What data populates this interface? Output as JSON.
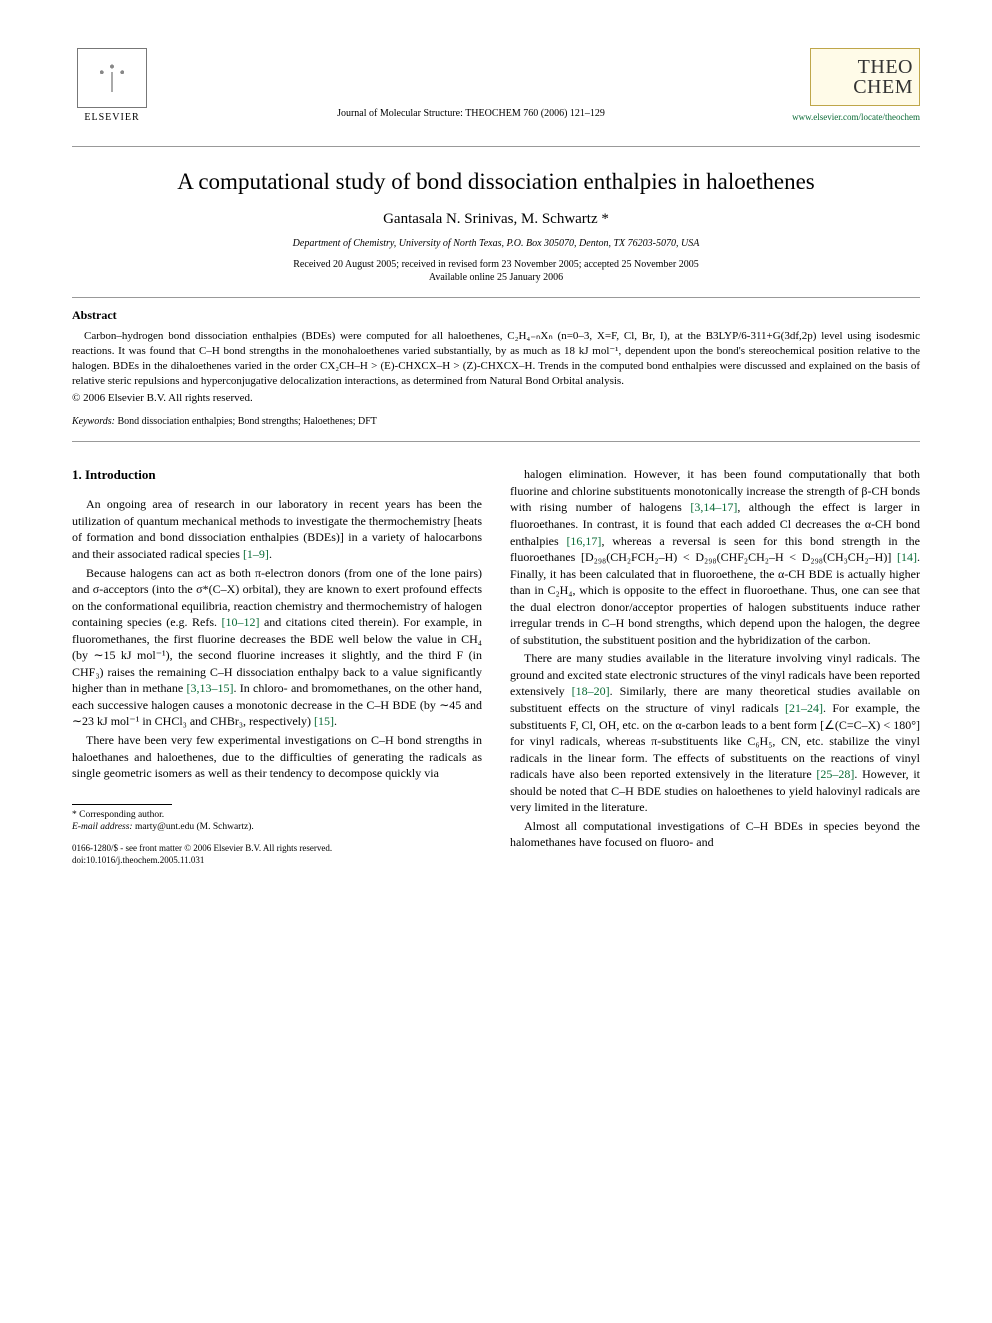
{
  "header": {
    "publisher_logo_text": "ELSEVIER",
    "journal_citation": "Journal of Molecular Structure: THEOCHEM 760 (2006) 121–129",
    "journal_brand_line1": "THEO",
    "journal_brand_line2": "CHEM",
    "journal_url": "www.elsevier.com/locate/theochem"
  },
  "article": {
    "title": "A computational study of bond dissociation enthalpies in haloethenes",
    "authors": "Gantasala N. Srinivas, M. Schwartz *",
    "affiliation": "Department of Chemistry, University of North Texas, P.O. Box 305070, Denton, TX 76203-5070, USA",
    "received": "Received 20 August 2005; received in revised form 23 November 2005; accepted 25 November 2005",
    "available": "Available online 25 January 2006"
  },
  "abstract": {
    "heading": "Abstract",
    "body": "Carbon–hydrogen bond dissociation enthalpies (BDEs) were computed for all haloethenes, C₂H₄₋ₙXₙ (n=0–3, X=F, Cl, Br, I), at the B3LYP/6-311+G(3df,2p) level using isodesmic reactions. It was found that C–H bond strengths in the monohaloethenes varied substantially, by as much as 18 kJ mol⁻¹, dependent upon the bond's stereochemical position relative to the halogen. BDEs in the dihaloethenes varied in the order CX₂CH–H > (E)-CHXCX–H > (Z)-CHXCX–H. Trends in the computed bond enthalpies were discussed and explained on the basis of relative steric repulsions and hyperconjugative delocalization interactions, as determined from Natural Bond Orbital analysis.",
    "copyright": "© 2006 Elsevier B.V. All rights reserved.",
    "keywords_label": "Keywords:",
    "keywords": " Bond dissociation enthalpies; Bond strengths; Haloethenes; DFT"
  },
  "body": {
    "section_heading": "1. Introduction",
    "left_paragraphs": [
      "An ongoing area of research in our laboratory in recent years has been the utilization of quantum mechanical methods to investigate the thermochemistry [heats of formation and bond dissociation enthalpies (BDEs)] in a variety of halocarbons and their associated radical species [1–9].",
      "Because halogens can act as both π-electron donors (from one of the lone pairs) and σ-acceptors (into the σ*(C–X) orbital), they are known to exert profound effects on the conformational equilibria, reaction chemistry and thermochemistry of halogen containing species (e.g. Refs. [10–12] and citations cited therein). For example, in fluoromethanes, the first fluorine decreases the BDE well below the value in CH₄ (by ∼15 kJ mol⁻¹), the second fluorine increases it slightly, and the third F (in CHF₃) raises the remaining C–H dissociation enthalpy back to a value significantly higher than in methane [3,13–15]. In chloro- and bromomethanes, on the other hand, each successive halogen causes a monotonic decrease in the C–H BDE (by ∼45 and ∼23 kJ mol⁻¹ in CHCl₃ and CHBr₃, respectively) [15].",
      "There have been very few experimental investigations on C–H bond strengths in haloethanes and haloethenes, due to the difficulties of generating the radicals as single geometric isomers as well as their tendency to decompose quickly via"
    ],
    "right_paragraphs": [
      "halogen elimination. However, it has been found computationally that both fluorine and chlorine substituents monotonically increase the strength of β-CH bonds with rising number of halogens [3,14–17], although the effect is larger in fluoroethanes. In contrast, it is found that each added Cl decreases the α-CH bond enthalpies [16,17], whereas a reversal is seen for this bond strength in the fluoroethanes [D₂₉₈(CH₂FCH₂–H) < D₂₉₈(CHF₂CH₂–H < D₂₉₈(CH₃CH₂–H)] [14]. Finally, it has been calculated that in fluoroethene, the α-CH BDE is actually higher than in C₂H₄, which is opposite to the effect in fluoroethane. Thus, one can see that the dual electron donor/acceptor properties of halogen substituents induce rather irregular trends in C–H bond strengths, which depend upon the halogen, the degree of substitution, the substituent position and the hybridization of the carbon.",
      "There are many studies available in the literature involving vinyl radicals. The ground and excited state electronic structures of the vinyl radicals have been reported extensively [18–20]. Similarly, there are many theoretical studies available on substituent effects on the structure of vinyl radicals [21–24]. For example, the substituents F, Cl, OH, etc. on the α-carbon leads to a bent form [∠(C=C–X) < 180°] for vinyl radicals, whereas π-substituents like C₆H₅, CN, etc. stabilize the vinyl radicals in the linear form. The effects of substituents on the reactions of vinyl radicals have also been reported extensively in the literature [25–28]. However, it should be noted that C–H BDE studies on haloethenes to yield halovinyl radicals are very limited in the literature.",
      "Almost all computational investigations of C–H BDEs in species beyond the halomethanes have focused on fluoro- and"
    ]
  },
  "footer": {
    "corresponding": "* Corresponding author.",
    "email_label": "E-mail address:",
    "email": " marty@unt.edu (M. Schwartz).",
    "issn_line1": "0166-1280/$ - see front matter © 2006 Elsevier B.V. All rights reserved.",
    "issn_line2": "doi:10.1016/j.theochem.2005.11.031"
  },
  "colors": {
    "link_green": "#0a6b36",
    "box_border": "#bfa64a",
    "box_bg": "#fffbe8",
    "rule_gray": "#999999",
    "text": "#000000",
    "background": "#ffffff"
  },
  "typography": {
    "body_font": "Times New Roman",
    "title_fontsize": 23,
    "authors_fontsize": 15,
    "body_fontsize": 12,
    "abstract_fontsize": 11,
    "footnote_fontsize": 9.5
  }
}
